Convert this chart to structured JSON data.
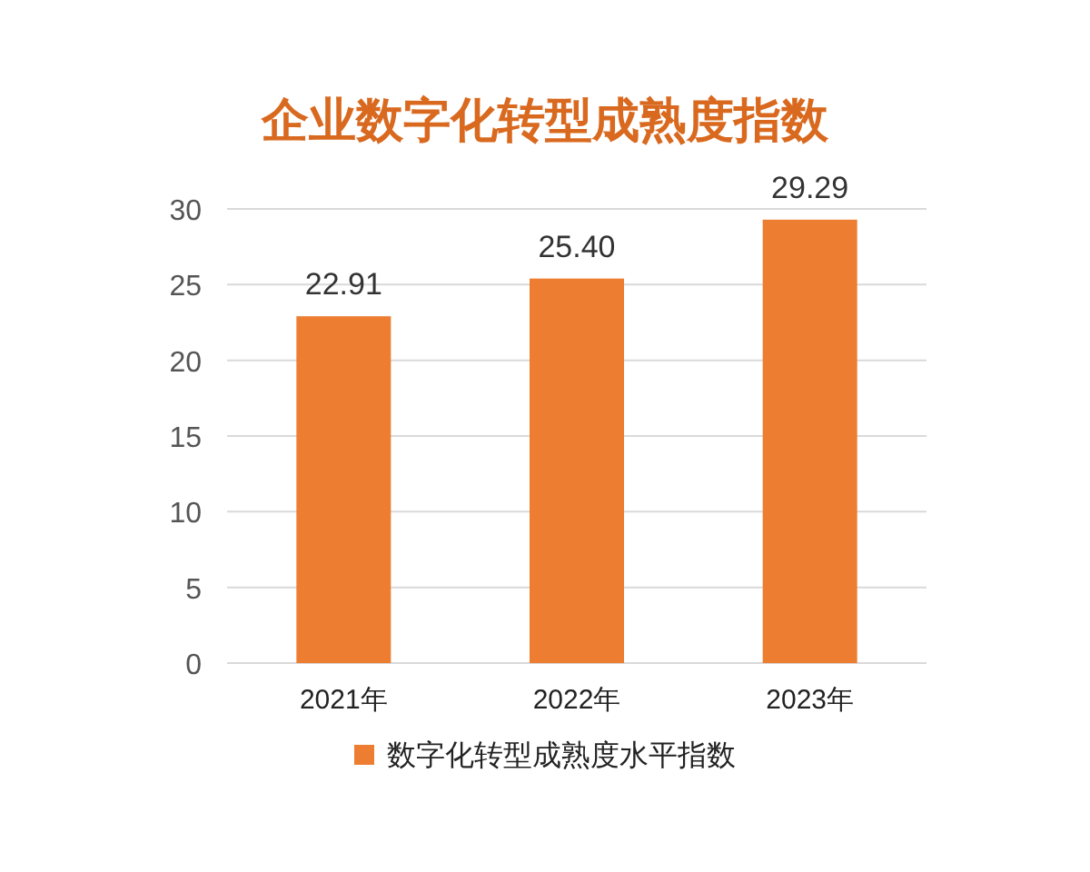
{
  "chart_data": {
    "type": "bar",
    "title": "企业数字化转型成熟度指数",
    "categories": [
      "2021年",
      "2022年",
      "2023年"
    ],
    "series": [
      {
        "name": "数字化转型成熟度水平指数",
        "color": "#ed7d31",
        "values": [
          22.91,
          25.4,
          29.29
        ],
        "value_labels": [
          "22.91",
          "25.40",
          "29.29"
        ]
      }
    ],
    "ylim": [
      0,
      30
    ],
    "yticks": [
      0,
      5,
      10,
      15,
      20,
      25,
      30
    ],
    "grid": "y",
    "legend": "bottom"
  }
}
